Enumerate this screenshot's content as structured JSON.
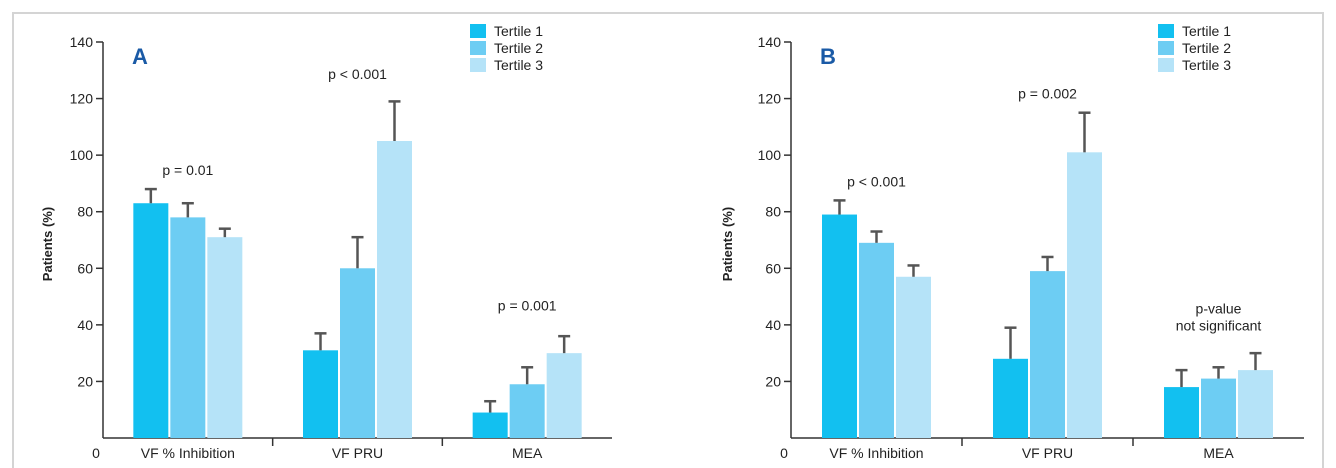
{
  "colors": {
    "tertile1": "#12c0f0",
    "tertile2": "#6dcdf3",
    "tertile3": "#b5e3f8",
    "error_bar": "#555555",
    "axis": "#333333",
    "panel_label": "#1a5aa6",
    "border": "#d4d4d4"
  },
  "chart_data": [
    {
      "type": "bar",
      "panel_label": "A",
      "ylabel": "Patients (%)",
      "ylim": [
        0,
        140
      ],
      "yticks": [
        20,
        40,
        60,
        80,
        100,
        120,
        140
      ],
      "origin_label": "0",
      "grid": false,
      "legend_position": "top-right",
      "categories": [
        "VF % Inhibition",
        "VF PRU",
        "MEA"
      ],
      "series": [
        {
          "name": "Tertile 1",
          "values": [
            83,
            31,
            9
          ],
          "errors": [
            5,
            6,
            4
          ]
        },
        {
          "name": "Tertile 2",
          "values": [
            78,
            60,
            19
          ],
          "errors": [
            5,
            11,
            6
          ]
        },
        {
          "name": "Tertile 3",
          "values": [
            71,
            105,
            30
          ],
          "errors": [
            3,
            14,
            6
          ]
        }
      ],
      "annotations": [
        {
          "category": 0,
          "text": "p = 0.01",
          "y": 93
        },
        {
          "category": 1,
          "text": "p < 0.001",
          "y": 127
        },
        {
          "category": 2,
          "text": "p = 0.001",
          "y": 45
        }
      ]
    },
    {
      "type": "bar",
      "panel_label": "B",
      "ylabel": "Patients (%)",
      "ylim": [
        0,
        140
      ],
      "yticks": [
        20,
        40,
        60,
        80,
        100,
        120,
        140
      ],
      "origin_label": "0",
      "grid": false,
      "legend_position": "top-right",
      "categories": [
        "VF % Inhibition",
        "VF PRU",
        "MEA"
      ],
      "series": [
        {
          "name": "Tertile 1",
          "values": [
            79,
            28,
            18
          ],
          "errors": [
            5,
            11,
            6
          ]
        },
        {
          "name": "Tertile 2",
          "values": [
            69,
            59,
            21
          ],
          "errors": [
            4,
            5,
            4
          ]
        },
        {
          "name": "Tertile 3",
          "values": [
            57,
            101,
            24
          ],
          "errors": [
            4,
            14,
            6
          ]
        }
      ],
      "annotations": [
        {
          "category": 0,
          "text": "p < 0.001",
          "y": 89
        },
        {
          "category": 1,
          "text": "p = 0.002",
          "y": 120
        },
        {
          "category": 2,
          "text": "p-value",
          "y": 44
        },
        {
          "category": 2,
          "text": "not significant",
          "y": 38
        }
      ]
    }
  ]
}
